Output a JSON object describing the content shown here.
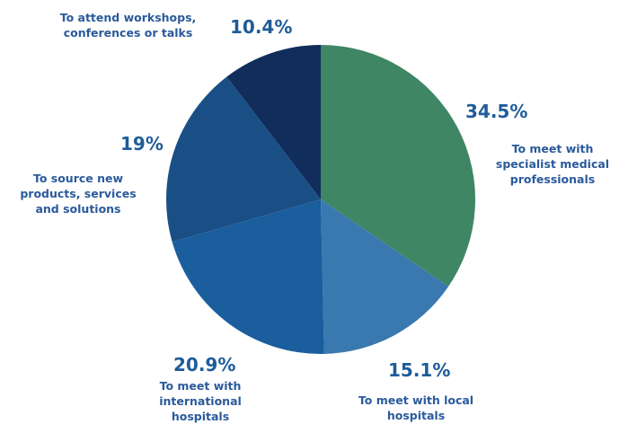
{
  "chart_data": {
    "type": "pie",
    "slices": [
      {
        "label": "To meet with\nspecialist medical\nprofessionals",
        "value": 34.5,
        "value_label": "34.5%",
        "color": "#3f8764"
      },
      {
        "label": "To meet with local\nhospitals",
        "value": 15.1,
        "value_label": "15.1%",
        "color": "#3a78b0"
      },
      {
        "label": "To meet with\ninternational\nhospitals",
        "value": 20.9,
        "value_label": "20.9%",
        "color": "#1b5e9e"
      },
      {
        "label": "To source new\nproducts, services\nand solutions",
        "value": 19.0,
        "value_label": "19%",
        "color": "#1a4f86"
      },
      {
        "label": "To attend workshops,\nconferences or talks",
        "value": 10.4,
        "value_label": "10.4%",
        "color": "#112d5b"
      }
    ],
    "start_angle": "12 o'clock",
    "direction": "clockwise",
    "legend": "none"
  },
  "colors": {
    "label_text": "#2a5a9b",
    "value_text": "#1f5c99",
    "background": "#ffffff"
  }
}
